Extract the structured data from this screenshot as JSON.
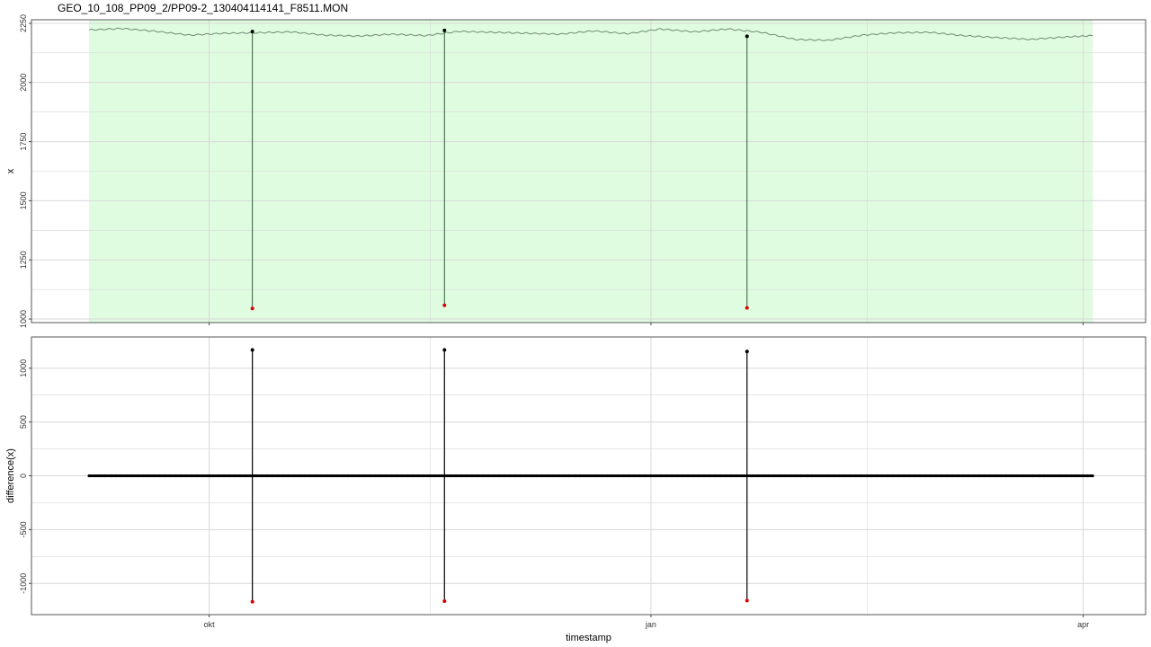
{
  "title": "GEO_10_108_PP09_2/PP09-2_130404114141_F8511.MON",
  "colors": {
    "panel_background": "#ffffff",
    "highlight_band": "#e0fce0",
    "grid": "#d8d8d8",
    "series_line": "#6e8b74",
    "marker_point": "#000000",
    "outlier_point": "#e00000"
  },
  "chart_data": [
    {
      "type": "line",
      "panel": "top",
      "xlabel": "",
      "ylabel": "x",
      "x_tick_labels": [
        "okt",
        "jan",
        "apr"
      ],
      "x_tick_dates": [
        "2012-10-01",
        "2013-01-01",
        "2013-04-01"
      ],
      "xlim": [
        "2012-08-25",
        "2013-04-14"
      ],
      "ylim": [
        985,
        2265
      ],
      "y_ticks": [
        1000,
        1250,
        1500,
        1750,
        2000,
        2250
      ],
      "grid": true,
      "highlight_band": [
        "2012-09-06",
        "2013-04-03"
      ],
      "series": [
        {
          "x": [
            "2012-09-06",
            "2012-09-13",
            "2012-09-20",
            "2012-09-27",
            "2012-10-04",
            "2012-10-11",
            "2012-10-18",
            "2012-10-25",
            "2012-11-01",
            "2012-11-08",
            "2012-11-15",
            "2012-11-22",
            "2012-11-29",
            "2012-12-06",
            "2012-12-13",
            "2012-12-20",
            "2012-12-27",
            "2013-01-03",
            "2013-01-10",
            "2013-01-17",
            "2013-01-24",
            "2013-01-31",
            "2013-02-07",
            "2013-02-14",
            "2013-02-21",
            "2013-02-28",
            "2013-03-07",
            "2013-03-14",
            "2013-03-21",
            "2013-03-28",
            "2013-04-03"
          ],
          "y": [
            2222,
            2228,
            2216,
            2200,
            2208,
            2210,
            2214,
            2200,
            2196,
            2204,
            2198,
            2216,
            2212,
            2208,
            2204,
            2218,
            2206,
            2226,
            2214,
            2226,
            2212,
            2182,
            2178,
            2200,
            2210,
            2212,
            2198,
            2190,
            2182,
            2192,
            2198
          ]
        }
      ],
      "marked_points": {
        "x": [
          "2012-10-10",
          "2012-11-19",
          "2013-01-21"
        ],
        "y": [
          2215,
          2220,
          2195
        ]
      },
      "outliers": {
        "x": [
          "2012-10-10",
          "2012-11-19",
          "2013-01-21"
        ],
        "y": [
          1045,
          1058,
          1047
        ]
      }
    },
    {
      "type": "scatter",
      "panel": "bottom",
      "xlabel": "timestamp",
      "ylabel": "difference(x)",
      "x_tick_labels": [
        "okt",
        "jan",
        "apr"
      ],
      "x_tick_dates": [
        "2012-10-01",
        "2013-01-01",
        "2013-04-01"
      ],
      "xlim": [
        "2012-08-25",
        "2013-04-14"
      ],
      "ylim": [
        -1290,
        1290
      ],
      "y_ticks": [
        -1000,
        -500,
        0,
        500,
        1000
      ],
      "y_tick_labels": [
        "-1000",
        "-500",
        "0",
        "500",
        "1000"
      ],
      "grid": true,
      "baseline_range": [
        "2012-09-06",
        "2013-04-03"
      ],
      "spikes": {
        "x": [
          "2012-10-10",
          "2012-11-19",
          "2013-01-21"
        ],
        "high": [
          1170,
          1170,
          1155
        ],
        "low": [
          -1170,
          -1165,
          -1160
        ]
      }
    }
  ]
}
